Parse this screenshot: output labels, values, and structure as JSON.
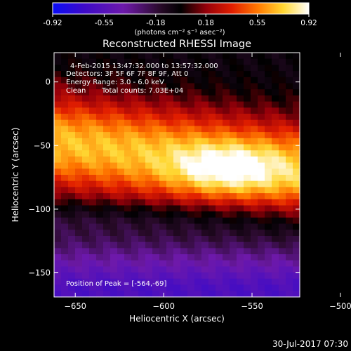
{
  "chart_data": {
    "type": "heatmap",
    "title": "Reconstructed RHESSI Image",
    "xlabel": "Heliocentric X (arcsec)",
    "ylabel": "Heliocentric Y (arcsec)",
    "xlim": [
      -662,
      -523
    ],
    "ylim": [
      -169,
      23
    ],
    "x_ticks": [
      -650,
      -600,
      -550,
      -500
    ],
    "y_ticks": [
      0,
      -50,
      -100,
      -150
    ],
    "colorbar": {
      "range": [
        -0.92,
        0.92
      ],
      "tick_values": [
        -0.92,
        -0.55,
        -0.18,
        0.18,
        0.55,
        0.92
      ],
      "tick_labels": [
        "-0.92",
        "-0.55",
        "-0.18",
        "0.18",
        "0.55",
        "0.92"
      ],
      "unit_label": "(photons cm⁻² s⁻¹ asec⁻²)"
    },
    "annotations": {
      "time_range": "4-Feb-2015 13:47:32.000 to 13:57:32.000",
      "detectors": "Detectors: 3F 5F 6F 7F 8F 9F, Att 0",
      "energy_range": "Energy Range: 3.0 - 6.0 keV",
      "method": "Clean",
      "total_counts": "Total counts: 7.03E+04",
      "peak": "Position of Peak = [-564,-69]"
    },
    "peak": {
      "x": -564,
      "y": -69,
      "value": 0.92
    },
    "bright_band": {
      "center_y_at_x_left": -48,
      "center_y_at_x_right": -70,
      "slope_note": "band center y shifts linearly across x"
    },
    "dark_lane_y": -105,
    "min_value": -0.92
  },
  "footer": {
    "timestamp": "30-Jul-2017 07:30"
  }
}
